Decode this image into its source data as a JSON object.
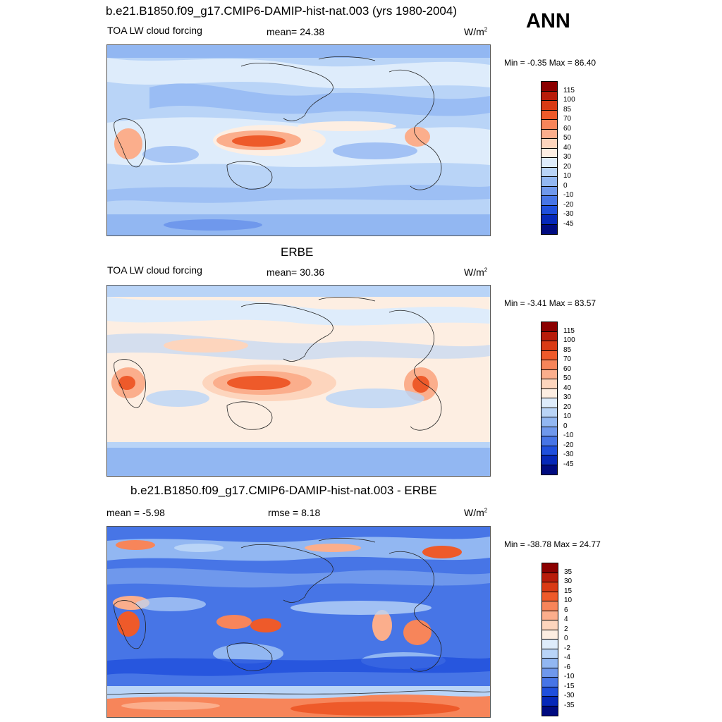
{
  "season": "ANN",
  "panels": [
    {
      "top_title": "b.e21.B1850.f09_g17.CMIP6-DAMIP-hist-nat.003 (yrs 1980-2004)",
      "left": "TOA LW cloud forcing",
      "center": "mean=  24.38",
      "units": "W/m",
      "units_sup": "2",
      "minmax": "Min =  -0.35 Max =  86.40",
      "colorbar_labels": [
        "115",
        "100",
        "85",
        "70",
        "60",
        "50",
        "40",
        "30",
        "20",
        "10",
        "0",
        "-10",
        "-20",
        "-30",
        "-45"
      ],
      "colorbar_colors": [
        "#8b0000",
        "#b81c0a",
        "#d93a14",
        "#ee5a2a",
        "#f7855a",
        "#fbae8c",
        "#fdd5bd",
        "#fdeee2",
        "#deecfb",
        "#b9d4f7",
        "#92b7f2",
        "#6f98ec",
        "#4775e6",
        "#1f4fdc",
        "#0628b8",
        "#000b80"
      ]
    },
    {
      "top_title": "ERBE",
      "left": "TOA LW cloud forcing",
      "center": "mean=  30.36",
      "units": "W/m",
      "units_sup": "2",
      "minmax": "Min =  -3.41 Max =  83.57",
      "colorbar_labels": [
        "115",
        "100",
        "85",
        "70",
        "60",
        "50",
        "40",
        "30",
        "20",
        "10",
        "0",
        "-10",
        "-20",
        "-30",
        "-45"
      ],
      "colorbar_colors": [
        "#8b0000",
        "#b81c0a",
        "#d93a14",
        "#ee5a2a",
        "#f7855a",
        "#fbae8c",
        "#fdd5bd",
        "#fdeee2",
        "#deecfb",
        "#b9d4f7",
        "#92b7f2",
        "#6f98ec",
        "#4775e6",
        "#1f4fdc",
        "#0628b8",
        "#000b80"
      ]
    },
    {
      "top_title": "b.e21.B1850.f09_g17.CMIP6-DAMIP-hist-nat.003 - ERBE",
      "left": "mean =  -5.98",
      "center": "rmse =   8.18",
      "units": "W/m",
      "units_sup": "2",
      "minmax": "Min = -38.78 Max =  24.77",
      "colorbar_labels": [
        "35",
        "30",
        "15",
        "10",
        "6",
        "4",
        "2",
        "0",
        "-2",
        "-4",
        "-6",
        "-10",
        "-15",
        "-30",
        "-35"
      ],
      "colorbar_colors": [
        "#8b0000",
        "#b81c0a",
        "#d93a14",
        "#ee5a2a",
        "#f7855a",
        "#fbae8c",
        "#fdd5bd",
        "#fdeee2",
        "#deecfb",
        "#b9d4f7",
        "#92b7f2",
        "#6f98ec",
        "#4775e6",
        "#1f4fdc",
        "#0628b8",
        "#000b80"
      ]
    }
  ]
}
